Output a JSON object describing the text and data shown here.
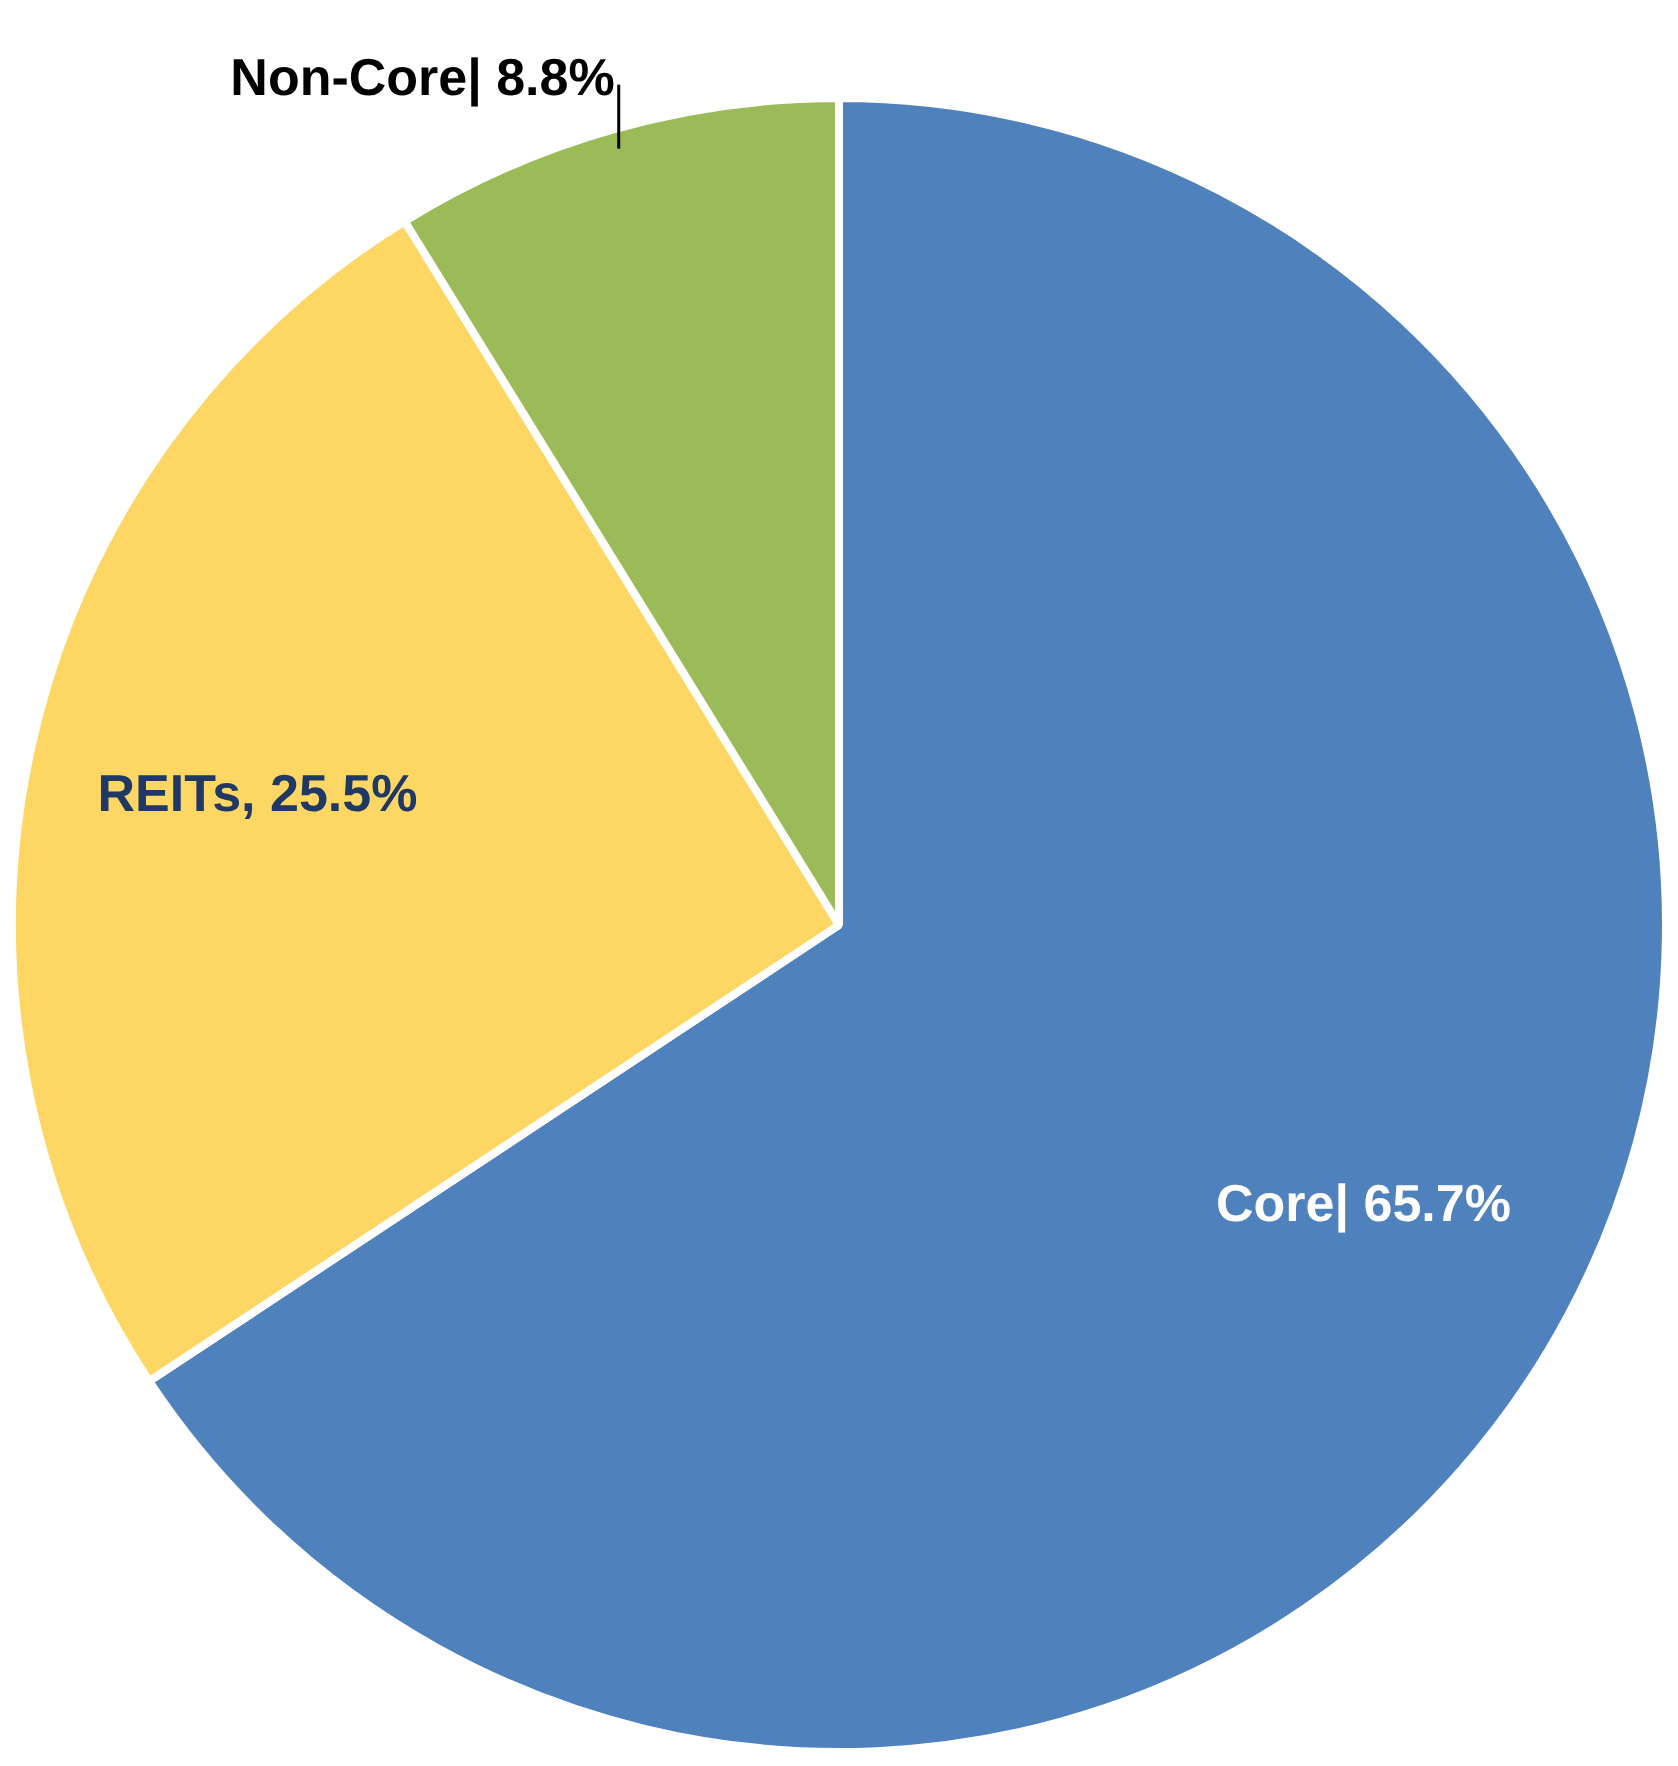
{
  "chart_data": {
    "type": "pie",
    "categories": [
      "Core",
      "REITs",
      "Non-Core"
    ],
    "values": [
      65.7,
      25.5,
      8.8
    ],
    "colors": [
      "#4f81bd",
      "#fdd663",
      "#9bbb59"
    ],
    "value_labels": [
      "| 65.7%",
      ", 25.5%",
      "| 8.8%"
    ],
    "legend": false
  }
}
